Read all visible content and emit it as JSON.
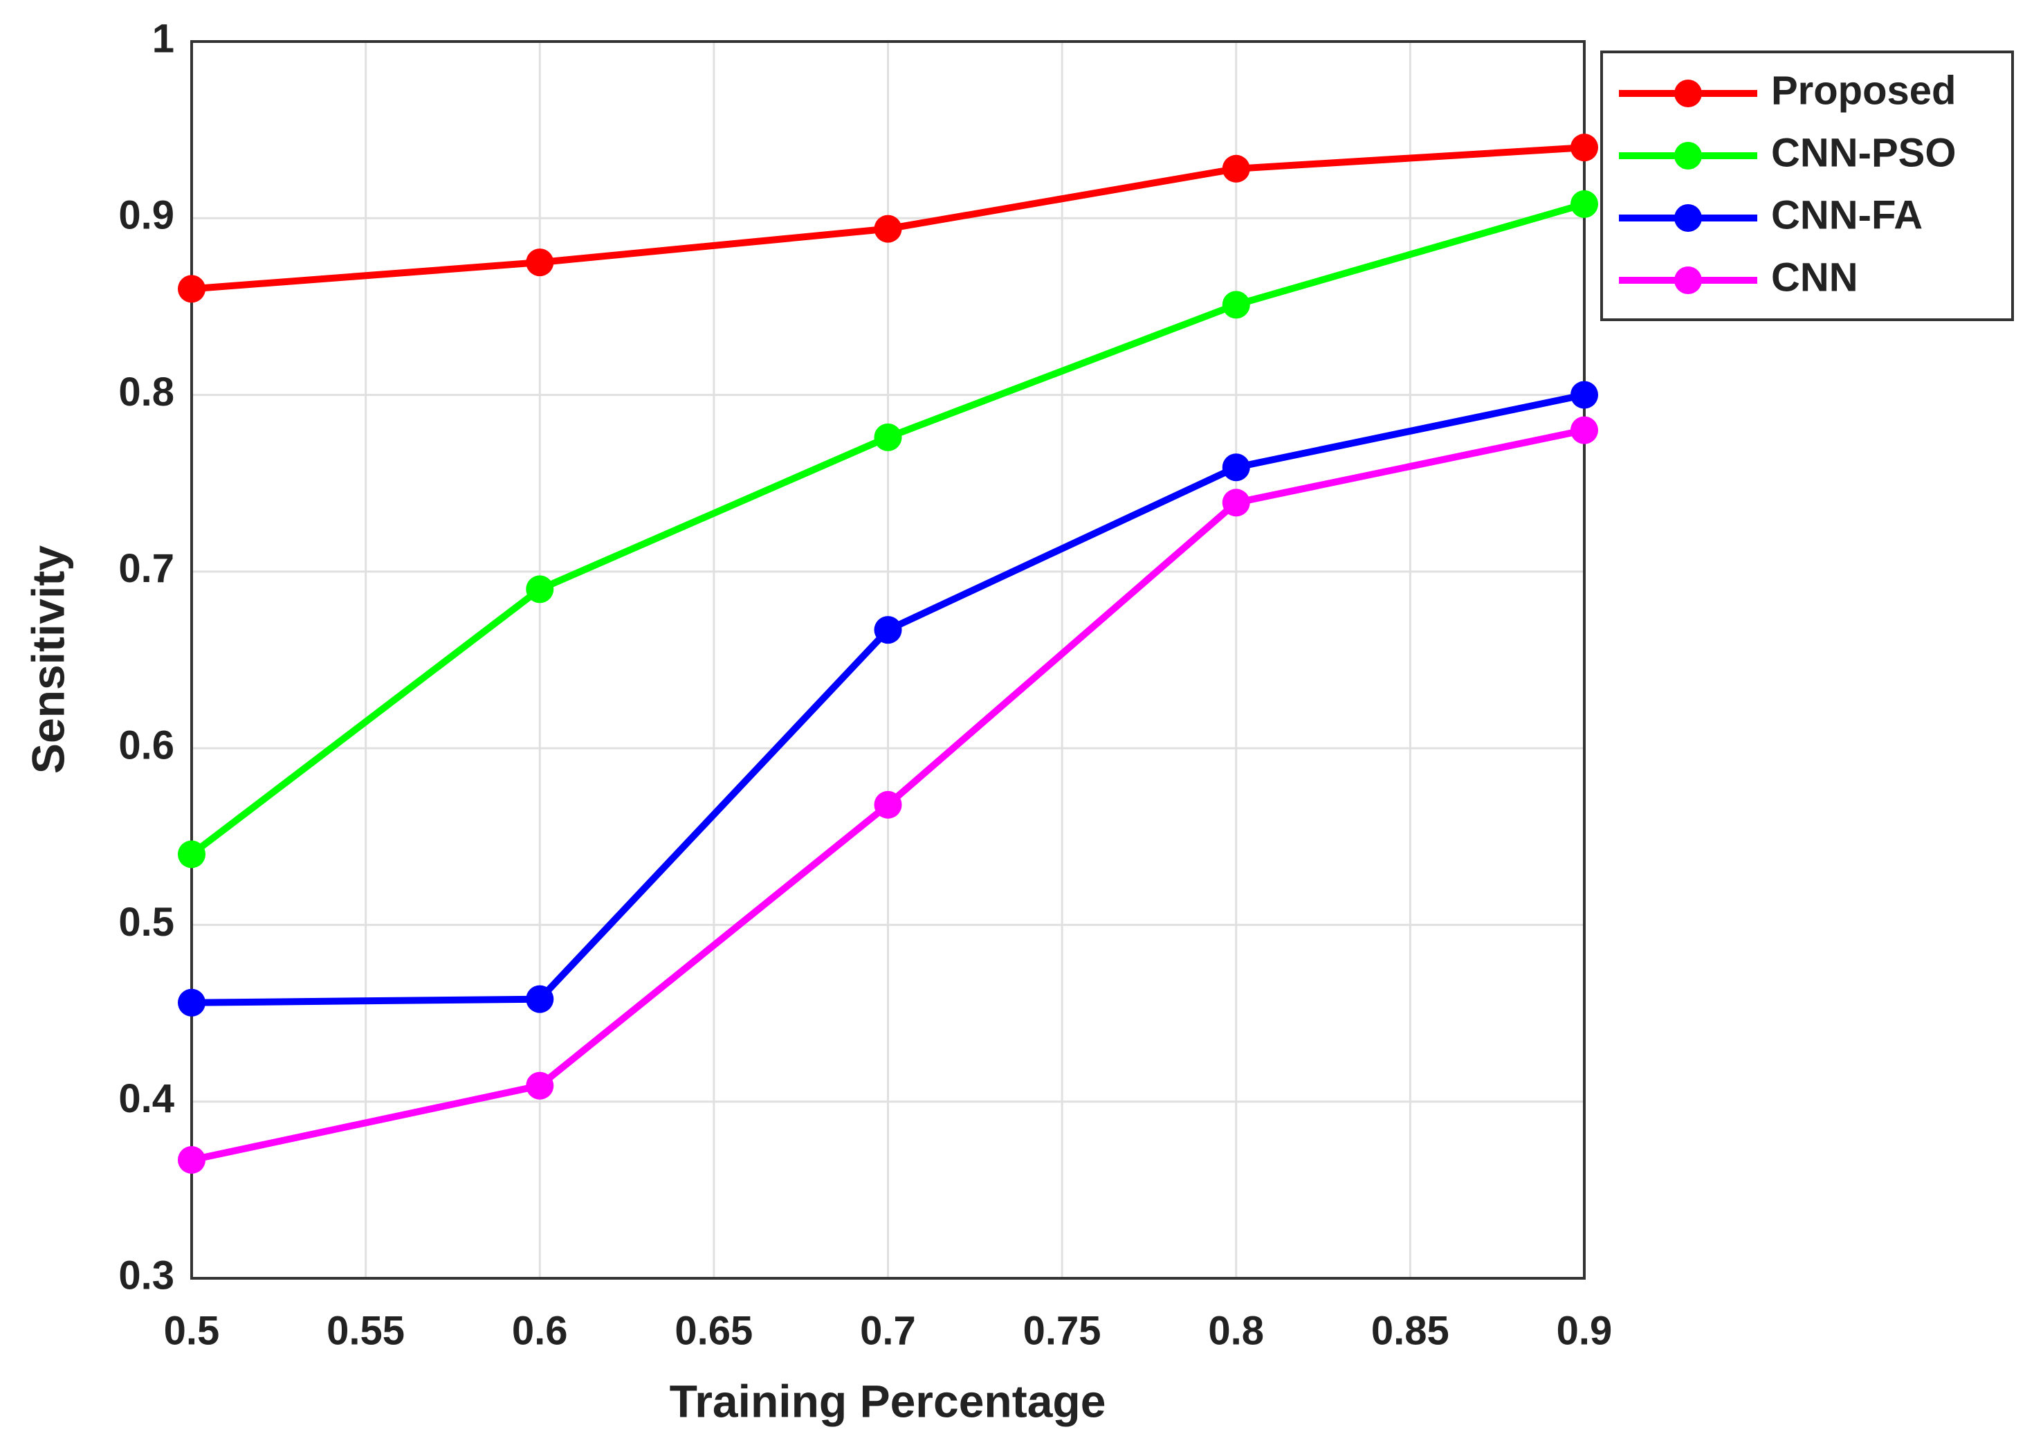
{
  "chart_data": {
    "type": "line",
    "xlabel": "Training Percentage",
    "ylabel": "Sensitivity",
    "x": [
      0.5,
      0.6,
      0.7,
      0.8,
      0.9
    ],
    "series": [
      {
        "name": "Proposed",
        "color": "#ff0000",
        "values": [
          0.86,
          0.875,
          0.894,
          0.928,
          0.94
        ]
      },
      {
        "name": "CNN-PSO",
        "color": "#00ff00",
        "values": [
          0.54,
          0.69,
          0.776,
          0.851,
          0.908
        ]
      },
      {
        "name": "CNN-FA",
        "color": "#0000ff",
        "values": [
          0.456,
          0.458,
          0.667,
          0.759,
          0.8
        ]
      },
      {
        "name": "CNN",
        "color": "#ff00ff",
        "values": [
          0.367,
          0.409,
          0.568,
          0.739,
          0.78
        ]
      }
    ],
    "xlim": [
      0.5,
      0.9
    ],
    "xticks": [
      0.5,
      0.55,
      0.6,
      0.65,
      0.7,
      0.75,
      0.8,
      0.85,
      0.9
    ],
    "ylim": [
      0.3,
      1
    ],
    "yticks": [
      0.3,
      0.4,
      0.5,
      0.6,
      0.7,
      0.8,
      0.9,
      1
    ],
    "grid": true,
    "legend": "upper right"
  }
}
